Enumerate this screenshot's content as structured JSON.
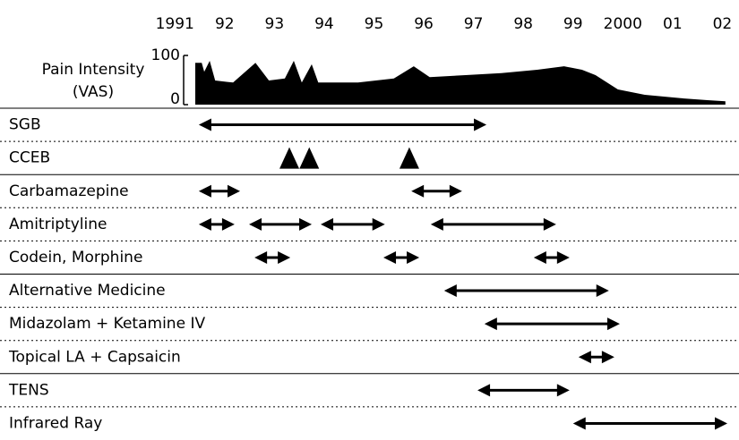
{
  "chart_data": {
    "type": "timeline",
    "xlim": [
      1990.6,
      2002.1
    ],
    "xticks": [
      1991,
      {
        "value": 1992,
        "label": "92"
      },
      {
        "value": 1993,
        "label": "93"
      },
      {
        "value": 1994,
        "label": "94"
      },
      {
        "value": 1995,
        "label": "95"
      },
      {
        "value": 1996,
        "label": "96"
      },
      {
        "value": 1997,
        "label": "97"
      },
      {
        "value": 1998,
        "label": "98"
      },
      {
        "value": 1999,
        "label": "99"
      },
      2000,
      {
        "value": 2001,
        "label": "01"
      },
      {
        "value": 2002,
        "label": "02"
      }
    ],
    "area": {
      "ylabel": [
        "Pain Intensity",
        "(VAS)"
      ],
      "ylim": [
        0,
        100
      ],
      "yticks": [
        0,
        100
      ],
      "color": "#000000",
      "x": [
        1991.41,
        1991.54,
        1991.59,
        1991.7,
        1991.81,
        1992.17,
        1992.62,
        1992.89,
        1993.21,
        1993.39,
        1993.55,
        1993.75,
        1993.88,
        1994.68,
        1995.4,
        1995.8,
        1996.12,
        1996.84,
        1997.56,
        1998.28,
        1998.82,
        1999.18,
        1999.45,
        1999.9,
        2000.44,
        2001.16,
        2001.7,
        2002.06
      ],
      "values": [
        85,
        85,
        67,
        89,
        49,
        45,
        85,
        49,
        53,
        89,
        45,
        82,
        45,
        45,
        53,
        78,
        56,
        60,
        64,
        71,
        78,
        71,
        60,
        31,
        20,
        13,
        9,
        7
      ]
    },
    "rows": [
      {
        "name": "SGB",
        "intervals": [
          [
            1991.48,
            1997.26
          ]
        ]
      },
      {
        "name": "CCEB",
        "events": [
          1993.3,
          1993.7,
          1995.71
        ]
      },
      {
        "name": "Carbamazepine",
        "intervals": [
          [
            1991.48,
            1992.31
          ],
          [
            1995.75,
            1996.77
          ]
        ]
      },
      {
        "name": "Amitriptyline",
        "intervals": [
          [
            1991.48,
            1992.2
          ],
          [
            1992.49,
            1993.75
          ],
          [
            1993.93,
            1995.22
          ],
          [
            1996.14,
            1998.66
          ]
        ]
      },
      {
        "name": "Codein, Morphine",
        "intervals": [
          [
            1992.6,
            1993.32
          ],
          [
            1995.19,
            1995.91
          ],
          [
            1998.21,
            1998.93
          ]
        ]
      },
      {
        "name": "Alternative Medicine",
        "intervals": [
          [
            1996.41,
            1999.72
          ]
        ]
      },
      {
        "name": "Midazolam + Ketamine IV",
        "intervals": [
          [
            1997.22,
            1999.94
          ]
        ]
      },
      {
        "name": "Topical LA + Capsaicin",
        "intervals": [
          [
            1999.11,
            1999.83
          ]
        ]
      },
      {
        "name": "TENS",
        "intervals": [
          [
            1997.08,
            1998.93
          ]
        ]
      },
      {
        "name": "Infrared Ray",
        "intervals": [
          [
            1999.0,
            2002.1
          ]
        ]
      }
    ]
  }
}
